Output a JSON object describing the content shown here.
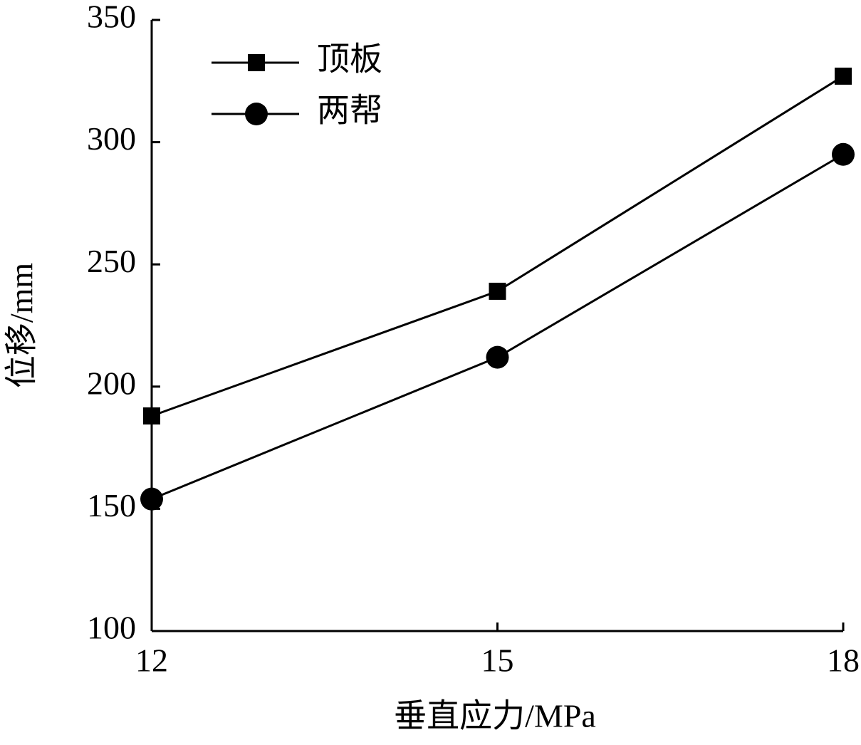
{
  "chart_data": {
    "type": "line",
    "x_label": "垂直应力/MPa",
    "y_label": "位移/mm",
    "x": [
      12,
      15,
      18
    ],
    "series": [
      {
        "name": "顶板",
        "color": "#000000",
        "marker": "square",
        "values": [
          188,
          239,
          327
        ]
      },
      {
        "name": "两帮",
        "color": "#000000",
        "marker": "circle",
        "values": [
          154,
          212,
          295
        ]
      }
    ],
    "xlim": [
      12,
      18
    ],
    "xticks": [
      12,
      15,
      18
    ],
    "ylim": [
      100,
      350
    ],
    "yticks": [
      100,
      150,
      200,
      250,
      300,
      350
    ],
    "grid": false,
    "legend": "upper-left"
  }
}
